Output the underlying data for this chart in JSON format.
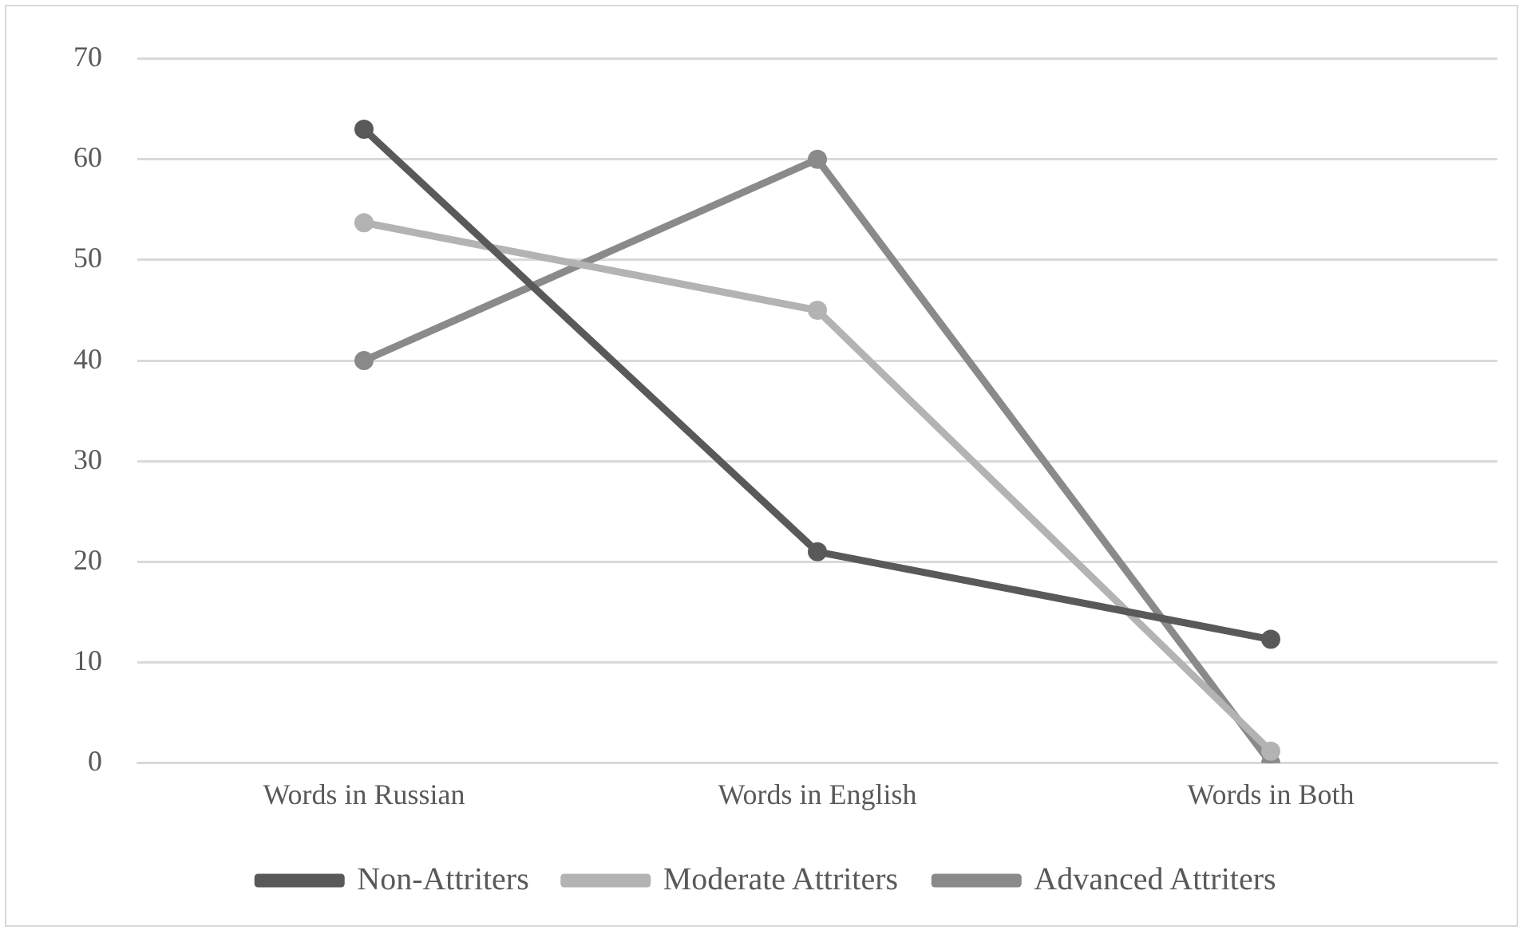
{
  "chart_data": {
    "type": "line",
    "categories": [
      "Words in Russian",
      "Words in English",
      "Words in Both"
    ],
    "series": [
      {
        "name": "Non-Attriters",
        "color": "#595959",
        "values": [
          63,
          21,
          12.3
        ]
      },
      {
        "name": "Moderate Attriters",
        "color": "#b3b3b3",
        "values": [
          53.7,
          45,
          1.2
        ]
      },
      {
        "name": "Advanced Attriters",
        "color": "#8a8a8a",
        "values": [
          40,
          60,
          0
        ]
      }
    ],
    "ylim": [
      0,
      70
    ],
    "yticks": [
      0,
      10,
      20,
      30,
      40,
      50,
      60,
      70
    ],
    "grid": "y",
    "legend": "bottom",
    "marker": "circle"
  }
}
